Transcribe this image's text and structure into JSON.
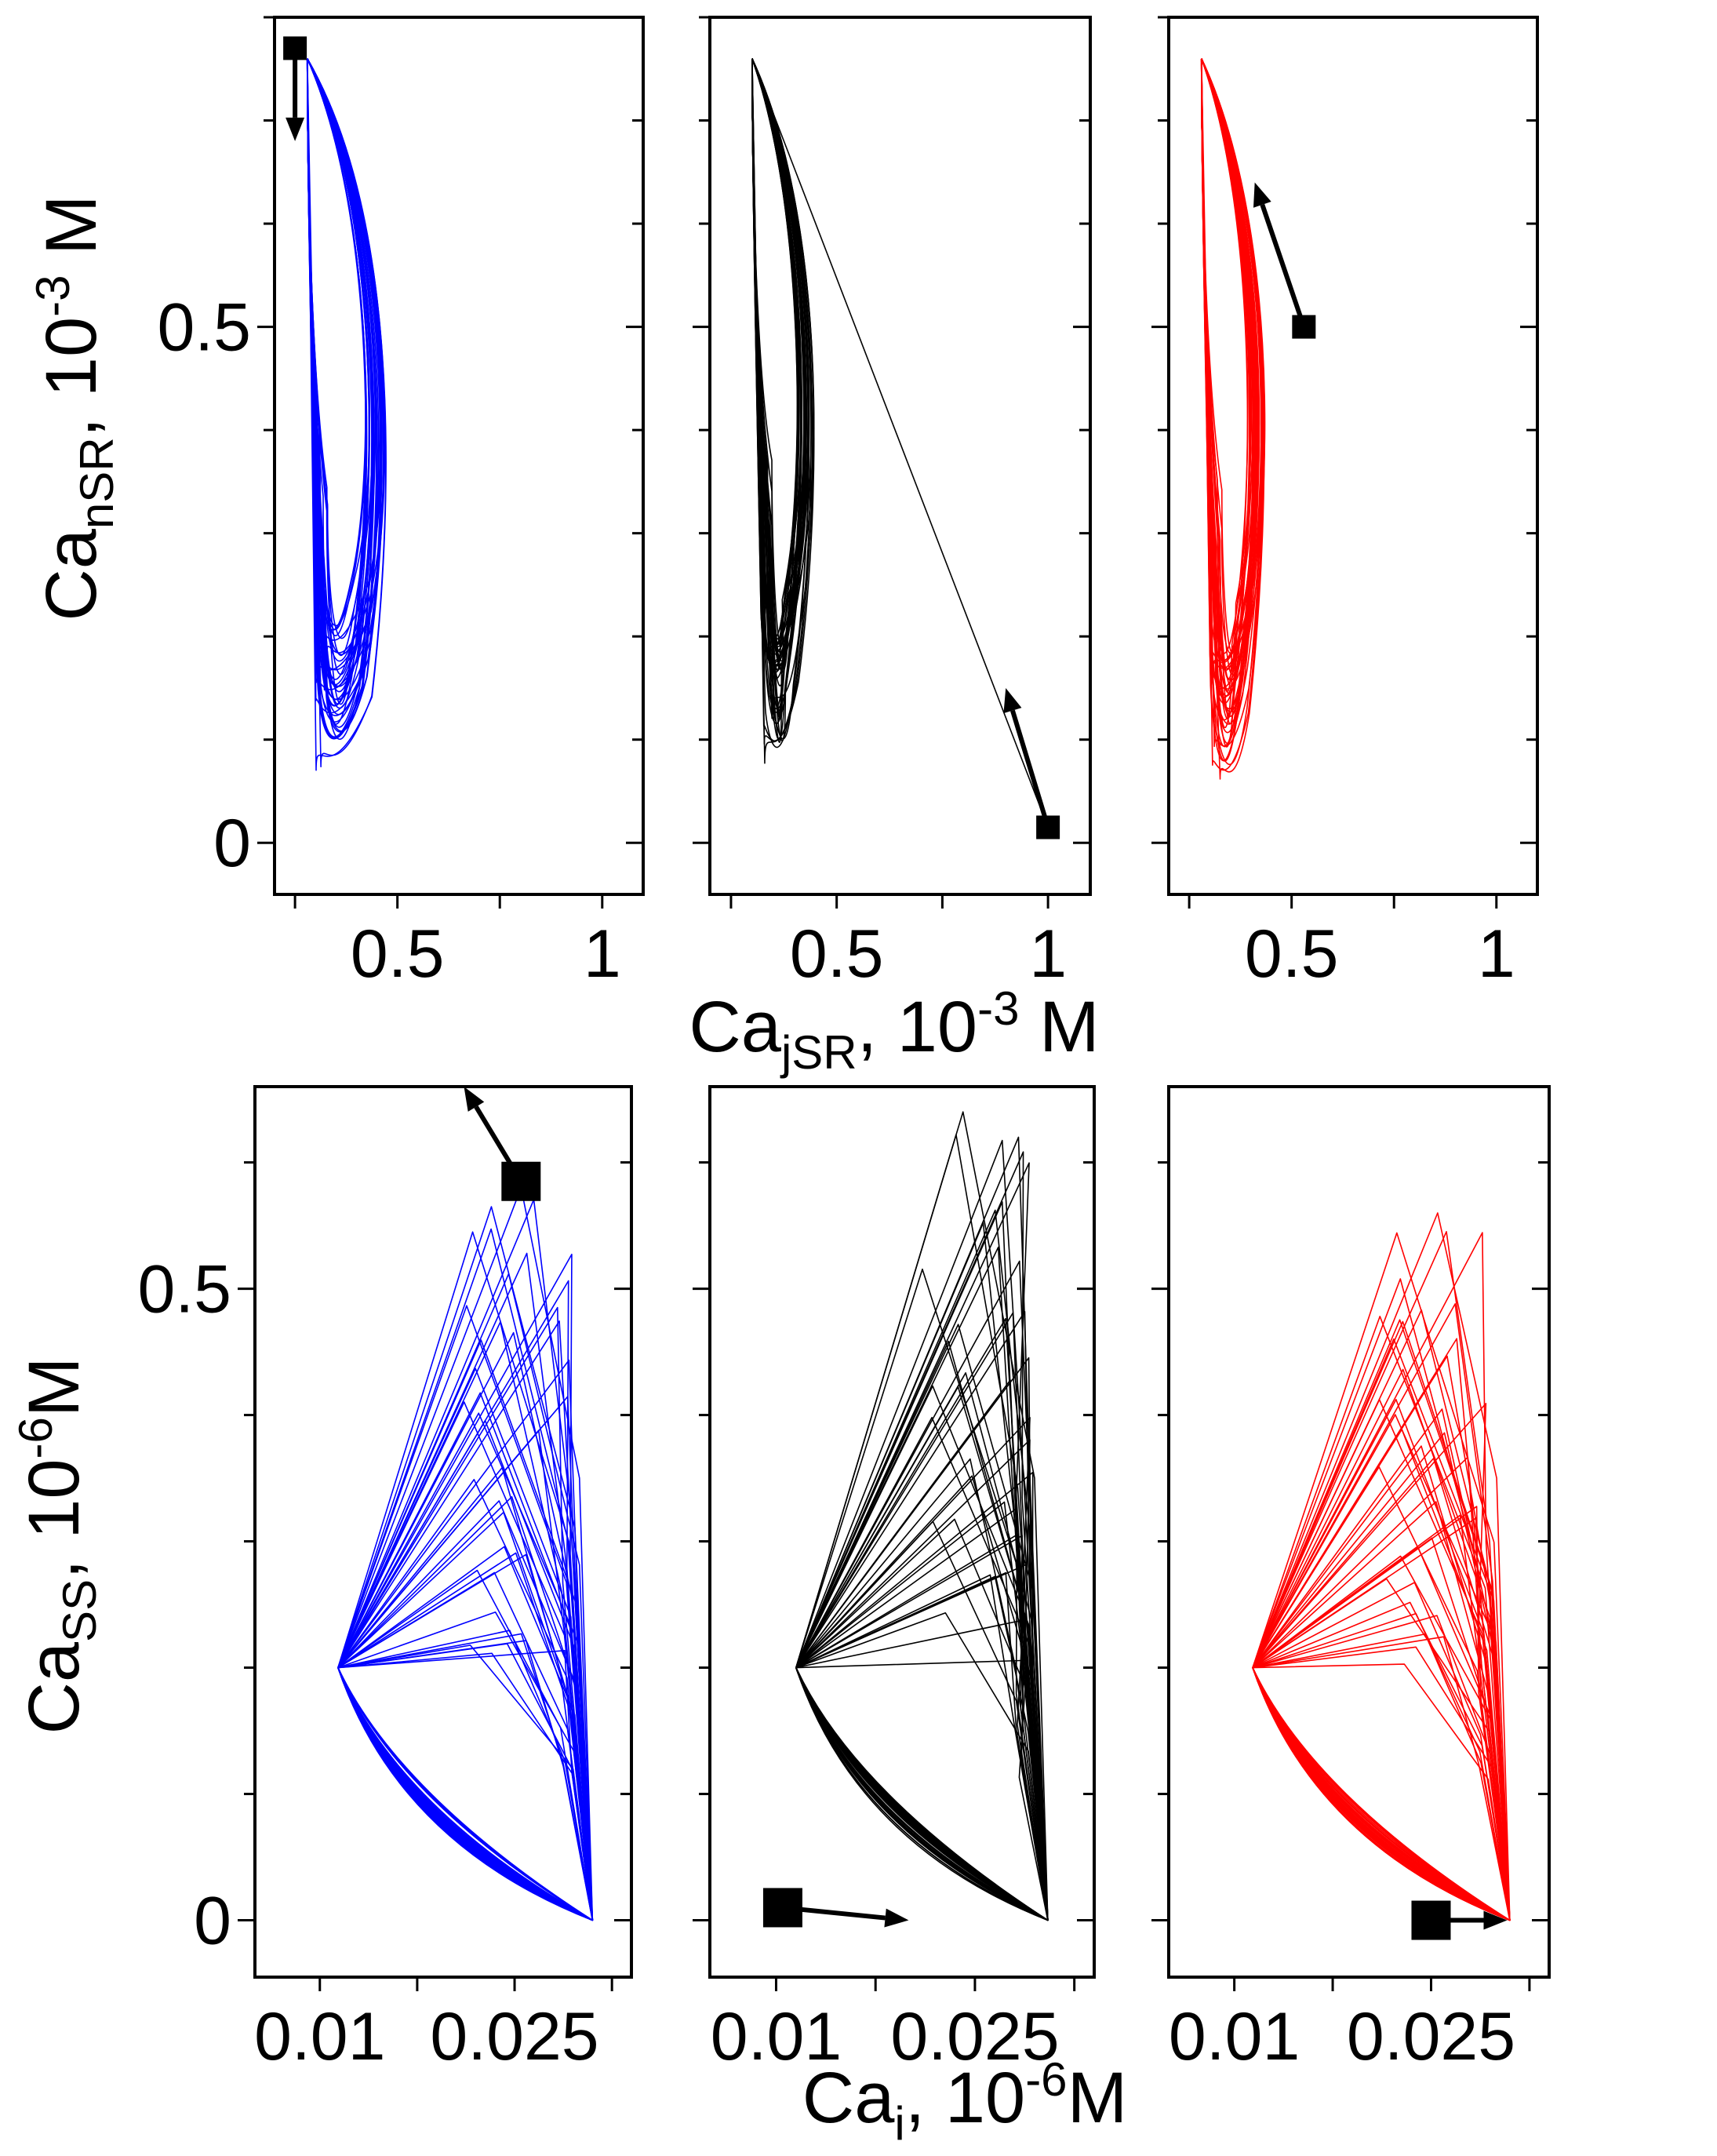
{
  "figure": {
    "top_row": {
      "ylabel": {
        "base": "Ca",
        "sub": "nSR",
        "rest": ", 10",
        "sup": "-3",
        "unit": " M"
      },
      "xlabel": {
        "base": "Ca",
        "sub": "jSR",
        "rest": ", 10",
        "sup": "-3",
        "unit": " M"
      }
    },
    "bottom_row": {
      "ylabel": {
        "base": "Ca",
        "sub": "SS",
        "rest": ", 10",
        "sup": "-6",
        "unit": "M"
      },
      "xlabel": {
        "base": "Ca",
        "sub": "i",
        "rest": ", 10",
        "sup": "-6",
        "unit": "M"
      }
    }
  },
  "chart_data": [
    {
      "type": "line",
      "panel": "top-left",
      "color": "#0000ff",
      "xlim": [
        0.2,
        1.1
      ],
      "ylim": [
        -0.05,
        0.8
      ],
      "xticks": [
        0.5,
        1
      ],
      "xticklabels": [
        "0.5",
        "1"
      ],
      "yticks": [
        0,
        0.5
      ],
      "yticklabels": [
        "0",
        "0.5"
      ],
      "marker": {
        "x": 0.25,
        "y": 0.77,
        "arrow_to": [
          0.25,
          0.68
        ]
      },
      "orbit": {
        "x_peak": 0.28,
        "y_peak": 0.76,
        "x_min": 0.27,
        "x_max": 0.5,
        "y_min": 0.06,
        "y_max": 0.76
      },
      "grid": false
    },
    {
      "type": "line",
      "panel": "top-middle",
      "color": "#000000",
      "xlim": [
        0.2,
        1.1
      ],
      "ylim": [
        -0.05,
        0.8
      ],
      "xticks": [
        0.5,
        1
      ],
      "xticklabels": [
        "0.5",
        "1"
      ],
      "yticks": [
        0,
        0.5
      ],
      "yticklabels": [
        "",
        ""
      ],
      "marker": {
        "x": 1.0,
        "y": 0.015,
        "arrow_to": [
          0.9,
          0.15
        ]
      },
      "orbit": {
        "x_peak": 0.3,
        "y_peak": 0.76,
        "x_min": 0.29,
        "x_max": 0.47,
        "y_min": 0.06,
        "y_max": 0.76
      },
      "grid": false
    },
    {
      "type": "line",
      "panel": "top-right",
      "color": "#ff0000",
      "xlim": [
        0.2,
        1.1
      ],
      "ylim": [
        -0.05,
        0.8
      ],
      "xticks": [
        0.5,
        1
      ],
      "xticklabels": [
        "0.5",
        "1"
      ],
      "yticks": [
        0,
        0.5
      ],
      "yticklabels": [
        "",
        ""
      ],
      "marker": {
        "x": 0.53,
        "y": 0.5,
        "arrow_to": [
          0.41,
          0.64
        ]
      },
      "orbit": {
        "x_peak": 0.28,
        "y_peak": 0.76,
        "x_min": 0.27,
        "x_max": 0.46,
        "y_min": 0.04,
        "y_max": 0.76
      },
      "grid": false
    },
    {
      "type": "line",
      "panel": "bottom-left",
      "color": "#0000ff",
      "xlim": [
        0.005,
        0.034
      ],
      "ylim": [
        -0.045,
        0.66
      ],
      "xticks": [
        0.01,
        0.025
      ],
      "xticklabels": [
        "0.01",
        "0.025"
      ],
      "yticks": [
        0,
        0.5
      ],
      "yticklabels": [
        "0",
        "0.5"
      ],
      "marker": {
        "x": 0.0255,
        "y": 0.585,
        "arrow_to": [
          0.0211,
          0.66
        ]
      },
      "orbit": {
        "x_low": 0.0114,
        "y_low": 0.2,
        "x_high": 0.031,
        "y_high": 0.0,
        "top_peak": [
          0.0255,
          0.58
        ]
      },
      "grid": false
    },
    {
      "type": "line",
      "panel": "bottom-middle",
      "color": "#000000",
      "xlim": [
        0.005,
        0.034
      ],
      "ylim": [
        -0.045,
        0.66
      ],
      "xticks": [
        0.01,
        0.025
      ],
      "xticklabels": [
        "0.01",
        "0.025"
      ],
      "yticks": [
        0,
        0.5
      ],
      "yticklabels": [
        "",
        ""
      ],
      "marker": {
        "x": 0.0105,
        "y": 0.01,
        "arrow_to": [
          0.02,
          0.0
        ]
      },
      "orbit": {
        "x_low": 0.0115,
        "y_low": 0.2,
        "x_high": 0.0305,
        "y_high": 0.0,
        "top_peak": [
          0.0241,
          0.64
        ]
      },
      "grid": false
    },
    {
      "type": "line",
      "panel": "bottom-right",
      "color": "#ff0000",
      "xlim": [
        0.005,
        0.034
      ],
      "ylim": [
        -0.045,
        0.66
      ],
      "xticks": [
        0.01,
        0.025
      ],
      "xticklabels": [
        "0.01",
        "0.025"
      ],
      "yticks": [
        0,
        0.5
      ],
      "yticklabels": [
        "",
        ""
      ],
      "marker": {
        "x": 0.025,
        "y": 0.0,
        "arrow_to": [
          0.0308,
          0.0
        ]
      },
      "orbit": {
        "x_low": 0.0114,
        "y_low": 0.2,
        "x_high": 0.031,
        "y_high": 0.0,
        "top_peak": [
          0.0255,
          0.56
        ]
      },
      "grid": false
    }
  ]
}
